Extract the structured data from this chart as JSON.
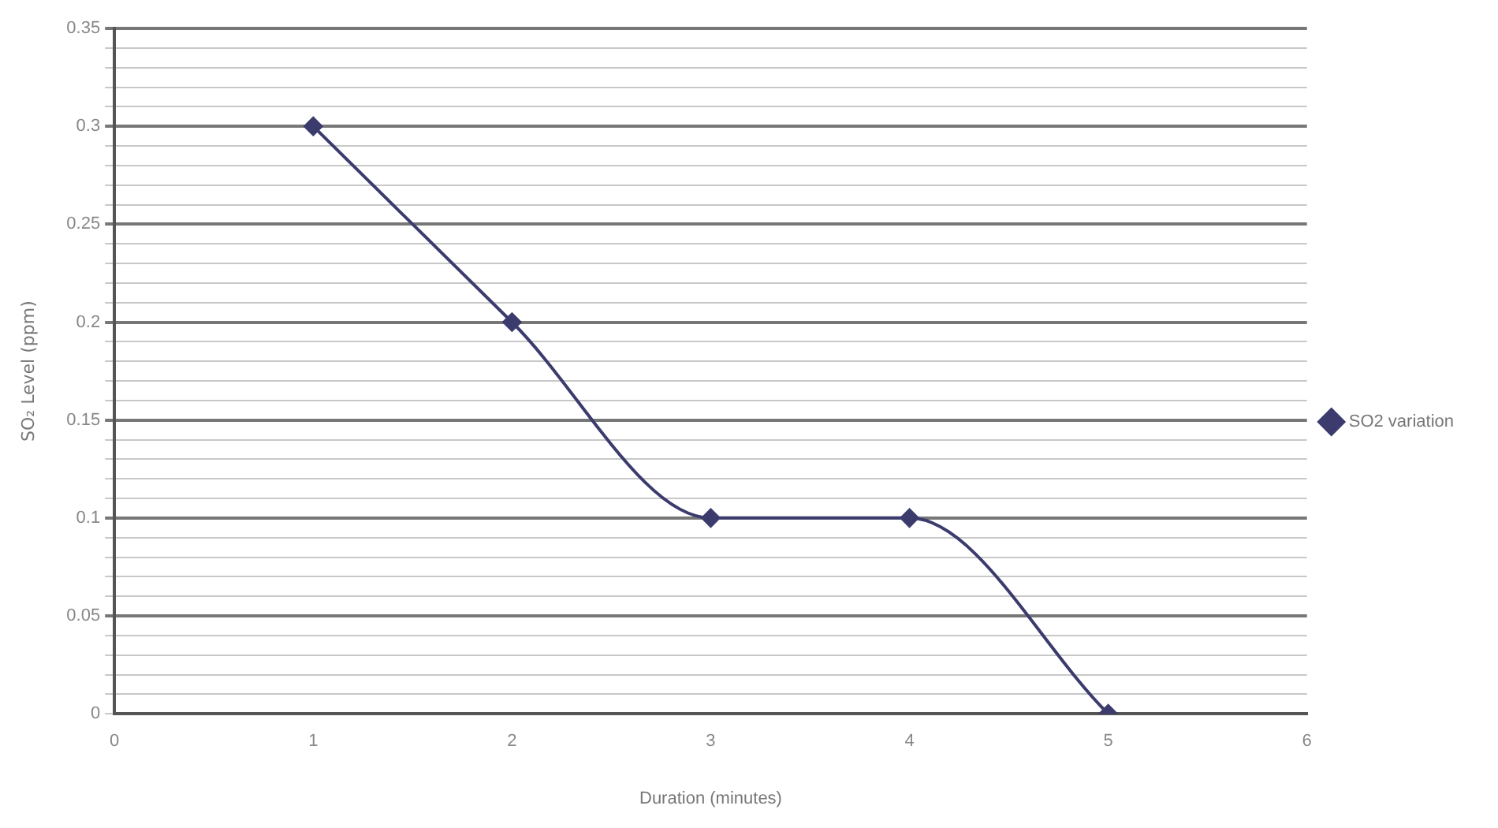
{
  "chart_data": {
    "type": "line",
    "xlabel": "Duration (minutes)",
    "ylabel": "SO₂ Level (ppm)",
    "series": [
      {
        "name": "SO2 variation",
        "color": "#3b3b6e",
        "x": [
          1,
          2,
          3,
          4,
          5
        ],
        "values": [
          0.3,
          0.2,
          0.1,
          0.1,
          0
        ]
      }
    ],
    "xlim": [
      0,
      6
    ],
    "xticks": [
      0,
      1,
      2,
      3,
      4,
      5,
      6
    ],
    "ylim": [
      0,
      0.35
    ],
    "yticks": [
      0,
      {
        "value": 0.01,
        "label": null
      },
      {
        "value": 0.02,
        "label": null
      },
      {
        "value": 0.03,
        "label": null
      },
      {
        "value": 0.04,
        "label": null
      },
      0.05,
      {
        "value": 0.06,
        "label": null
      },
      {
        "value": 0.07,
        "label": null
      },
      {
        "value": 0.08,
        "label": null
      },
      {
        "value": 0.09,
        "label": null
      },
      0.1,
      {
        "value": 0.11,
        "label": null
      },
      {
        "value": 0.12,
        "label": null
      },
      {
        "value": 0.13,
        "label": null
      },
      {
        "value": 0.14,
        "label": null
      },
      0.15,
      {
        "value": 0.16,
        "label": null
      },
      {
        "value": 0.17,
        "label": null
      },
      {
        "value": 0.18,
        "label": null
      },
      {
        "value": 0.19,
        "label": null
      },
      0.2,
      {
        "value": 0.21,
        "label": null
      },
      {
        "value": 0.22,
        "label": null
      },
      {
        "value": 0.23,
        "label": null
      },
      {
        "value": 0.24,
        "label": null
      },
      0.25,
      {
        "value": 0.26,
        "label": null
      },
      {
        "value": 0.27,
        "label": null
      },
      {
        "value": 0.28,
        "label": null
      },
      {
        "value": 0.29,
        "label": null
      },
      0.3,
      {
        "value": 0.31,
        "label": null
      },
      {
        "value": 0.32,
        "label": null
      },
      {
        "value": 0.33,
        "label": null
      },
      {
        "value": 0.34,
        "label": null
      },
      0.35
    ],
    "grid": "y",
    "legend": "right",
    "marker": "diamond",
    "line_style": "solid"
  }
}
